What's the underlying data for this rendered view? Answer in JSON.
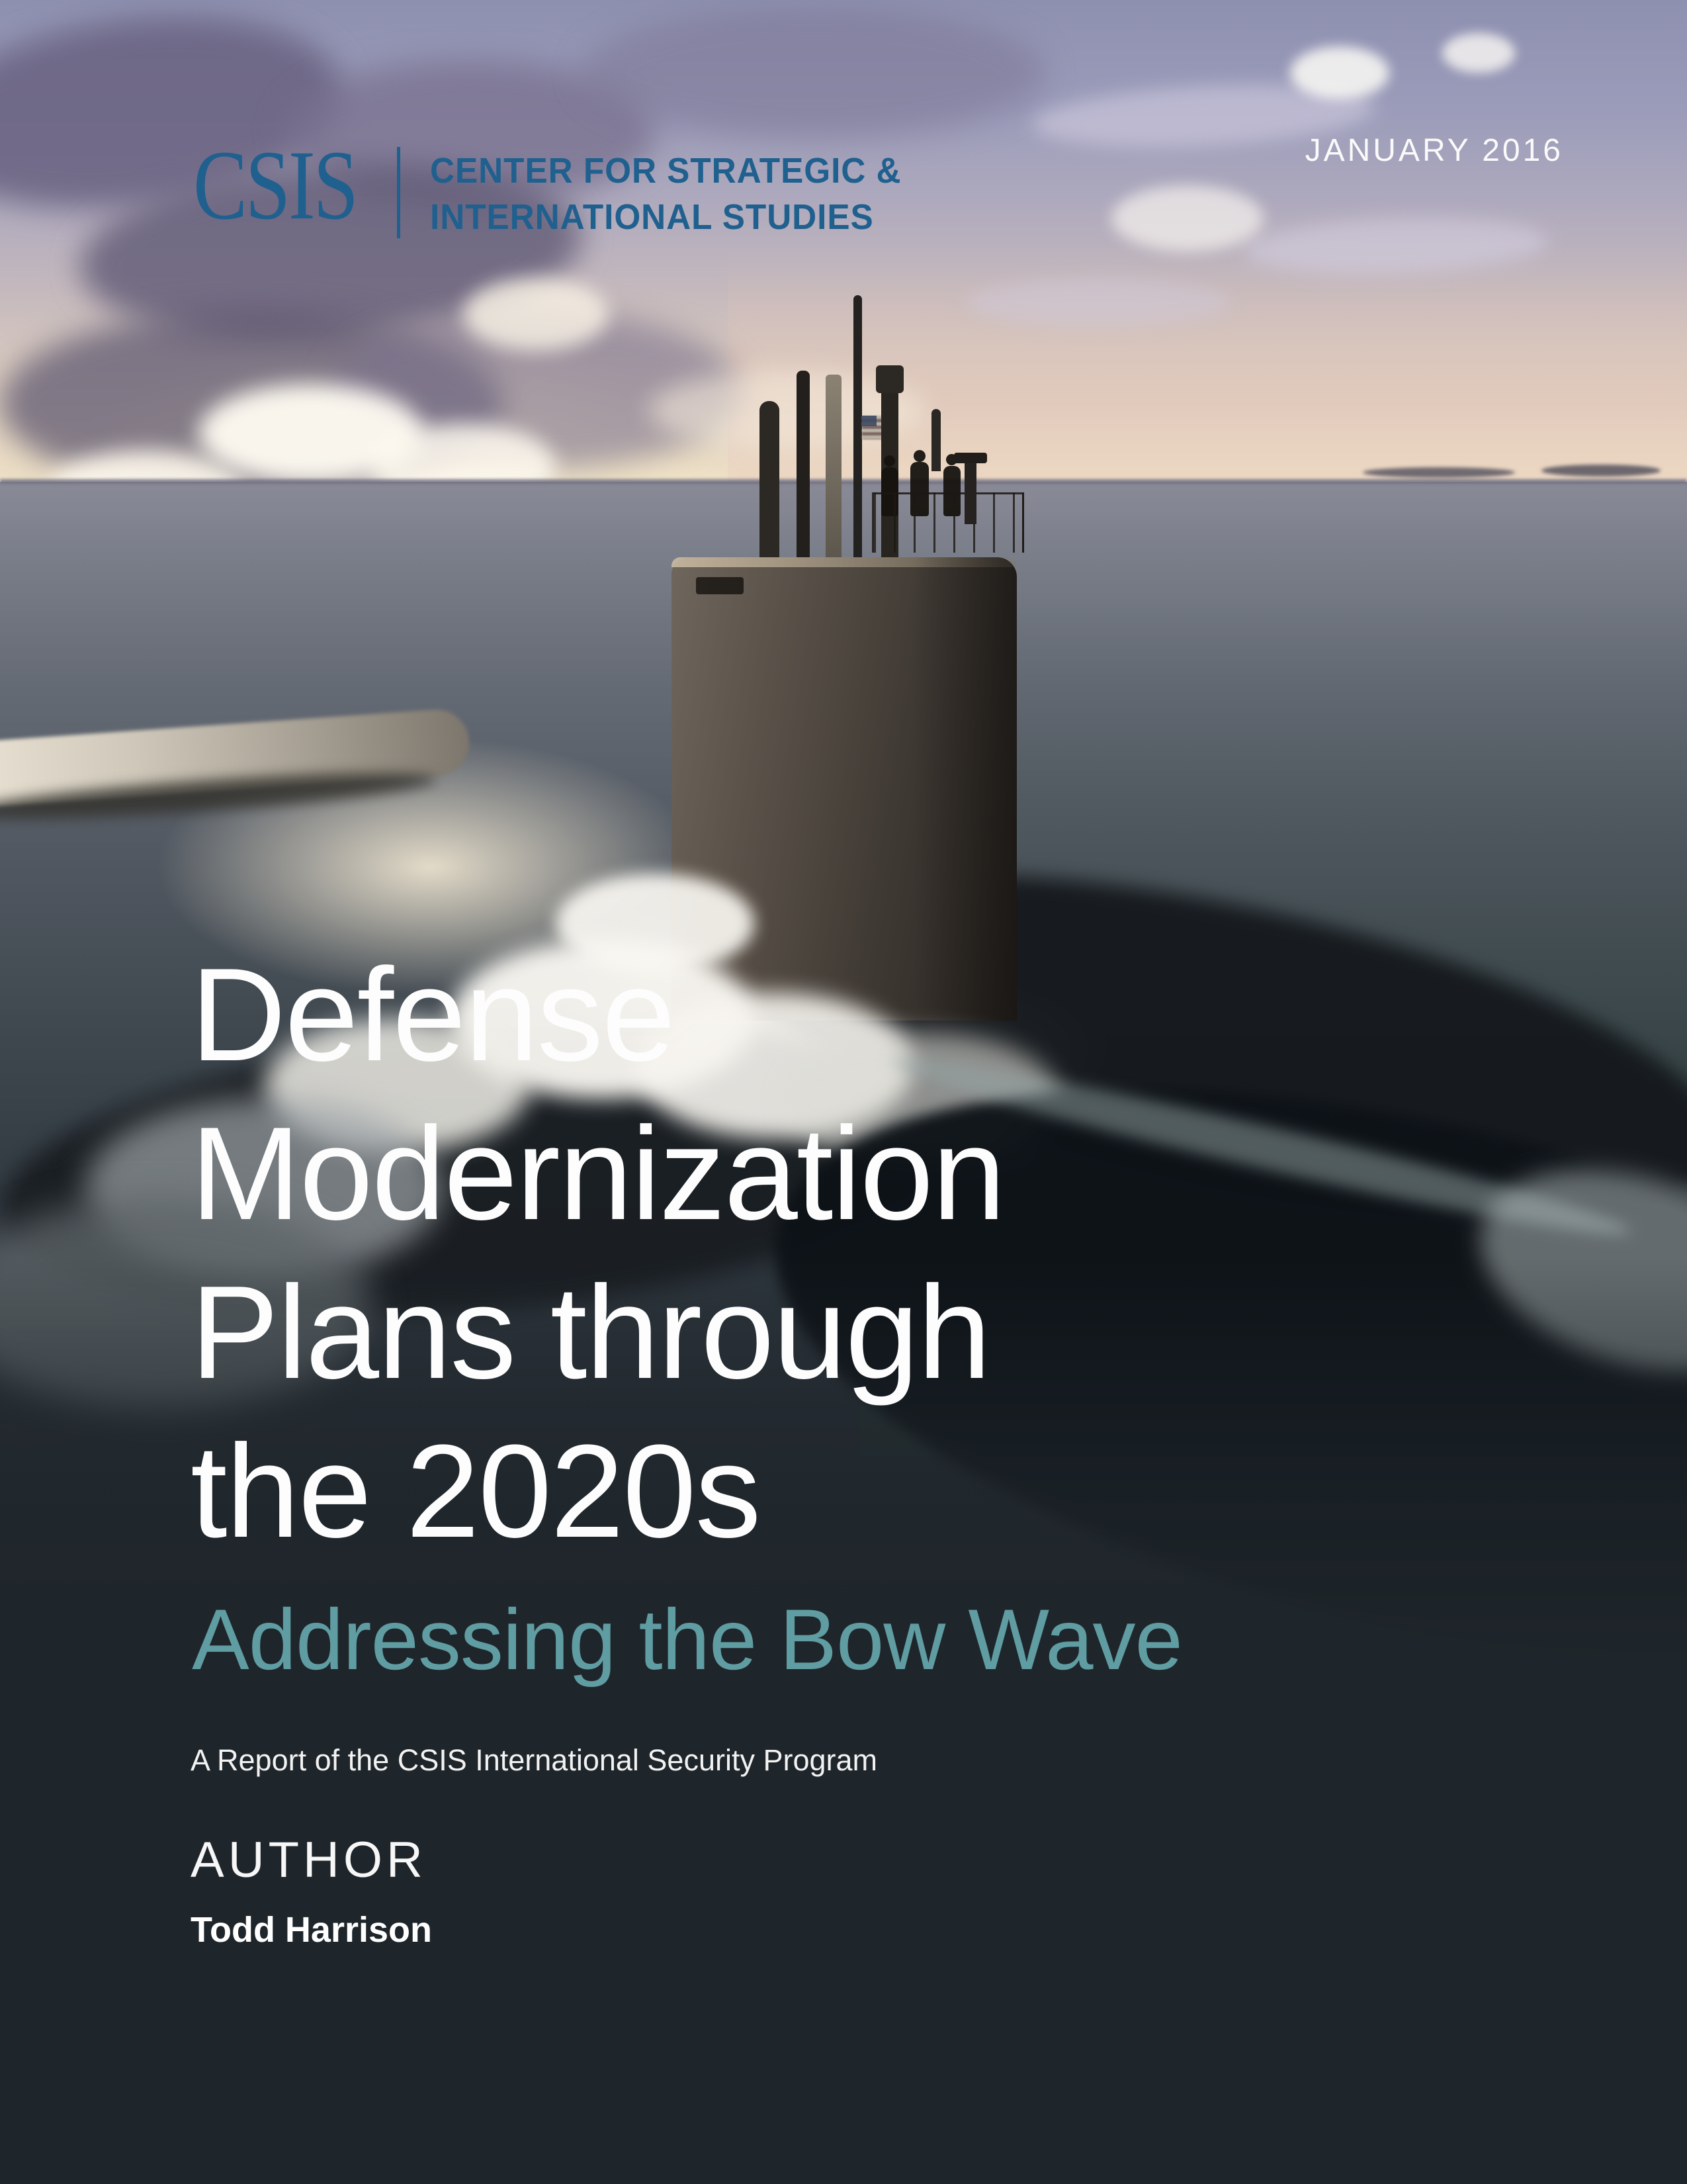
{
  "logo": {
    "acronym": "CSIS",
    "name_line1": "CENTER FOR STRATEGIC &",
    "name_line2": "INTERNATIONAL STUDIES"
  },
  "header": {
    "date": "JANUARY 2016"
  },
  "cover": {
    "title_lines": [
      "Defense",
      "Modernization",
      "Plans through",
      "the 2020s"
    ],
    "subtitle": "Addressing the Bow Wave",
    "report_line": "A Report of the CSIS International Security Program",
    "author_heading": "AUTHOR",
    "author_name": "Todd Harrison"
  },
  "colors": {
    "logo_blue": "#20608e",
    "subtitle_teal": "#5f9da2",
    "background_dark": "#1f262b",
    "text_white": "#ffffff"
  }
}
